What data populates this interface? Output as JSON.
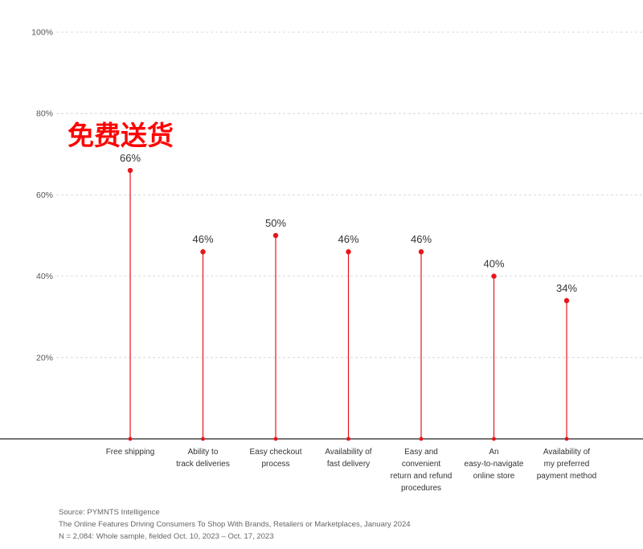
{
  "chart_data": {
    "type": "lollipop",
    "categories": [
      [
        "Free shipping"
      ],
      [
        "Ability to",
        "track deliveries"
      ],
      [
        "Easy checkout",
        "process"
      ],
      [
        "Availability of",
        "fast delivery"
      ],
      [
        "Easy and",
        "convenient",
        "return and refund",
        "procedures"
      ],
      [
        "An",
        "easy-to-navigate",
        "online store"
      ],
      [
        "Availability of",
        "my preferred",
        "payment method"
      ]
    ],
    "values": [
      66,
      46,
      50,
      46,
      46,
      40,
      34
    ],
    "value_labels": [
      "66%",
      "46%",
      "50%",
      "46%",
      "46%",
      "40%",
      "34%"
    ],
    "ylim": [
      0,
      100
    ],
    "yticks": [
      20,
      40,
      60,
      80,
      100
    ],
    "ytick_labels": [
      "20%",
      "40%",
      "60%",
      "80%",
      "100%"
    ],
    "grid": true,
    "color": "#e8141a",
    "annotation": "免费送货",
    "annotation_color": "#ff0000"
  },
  "footer": {
    "source": "Source: PYMNTS Intelligence",
    "report": "The Online Features Driving Consumers To Shop With Brands, Retailers or Marketplaces, January 2024",
    "sample": "N = 2,084: Whole sample, fielded Oct. 10, 2023 – Oct. 17, 2023"
  }
}
